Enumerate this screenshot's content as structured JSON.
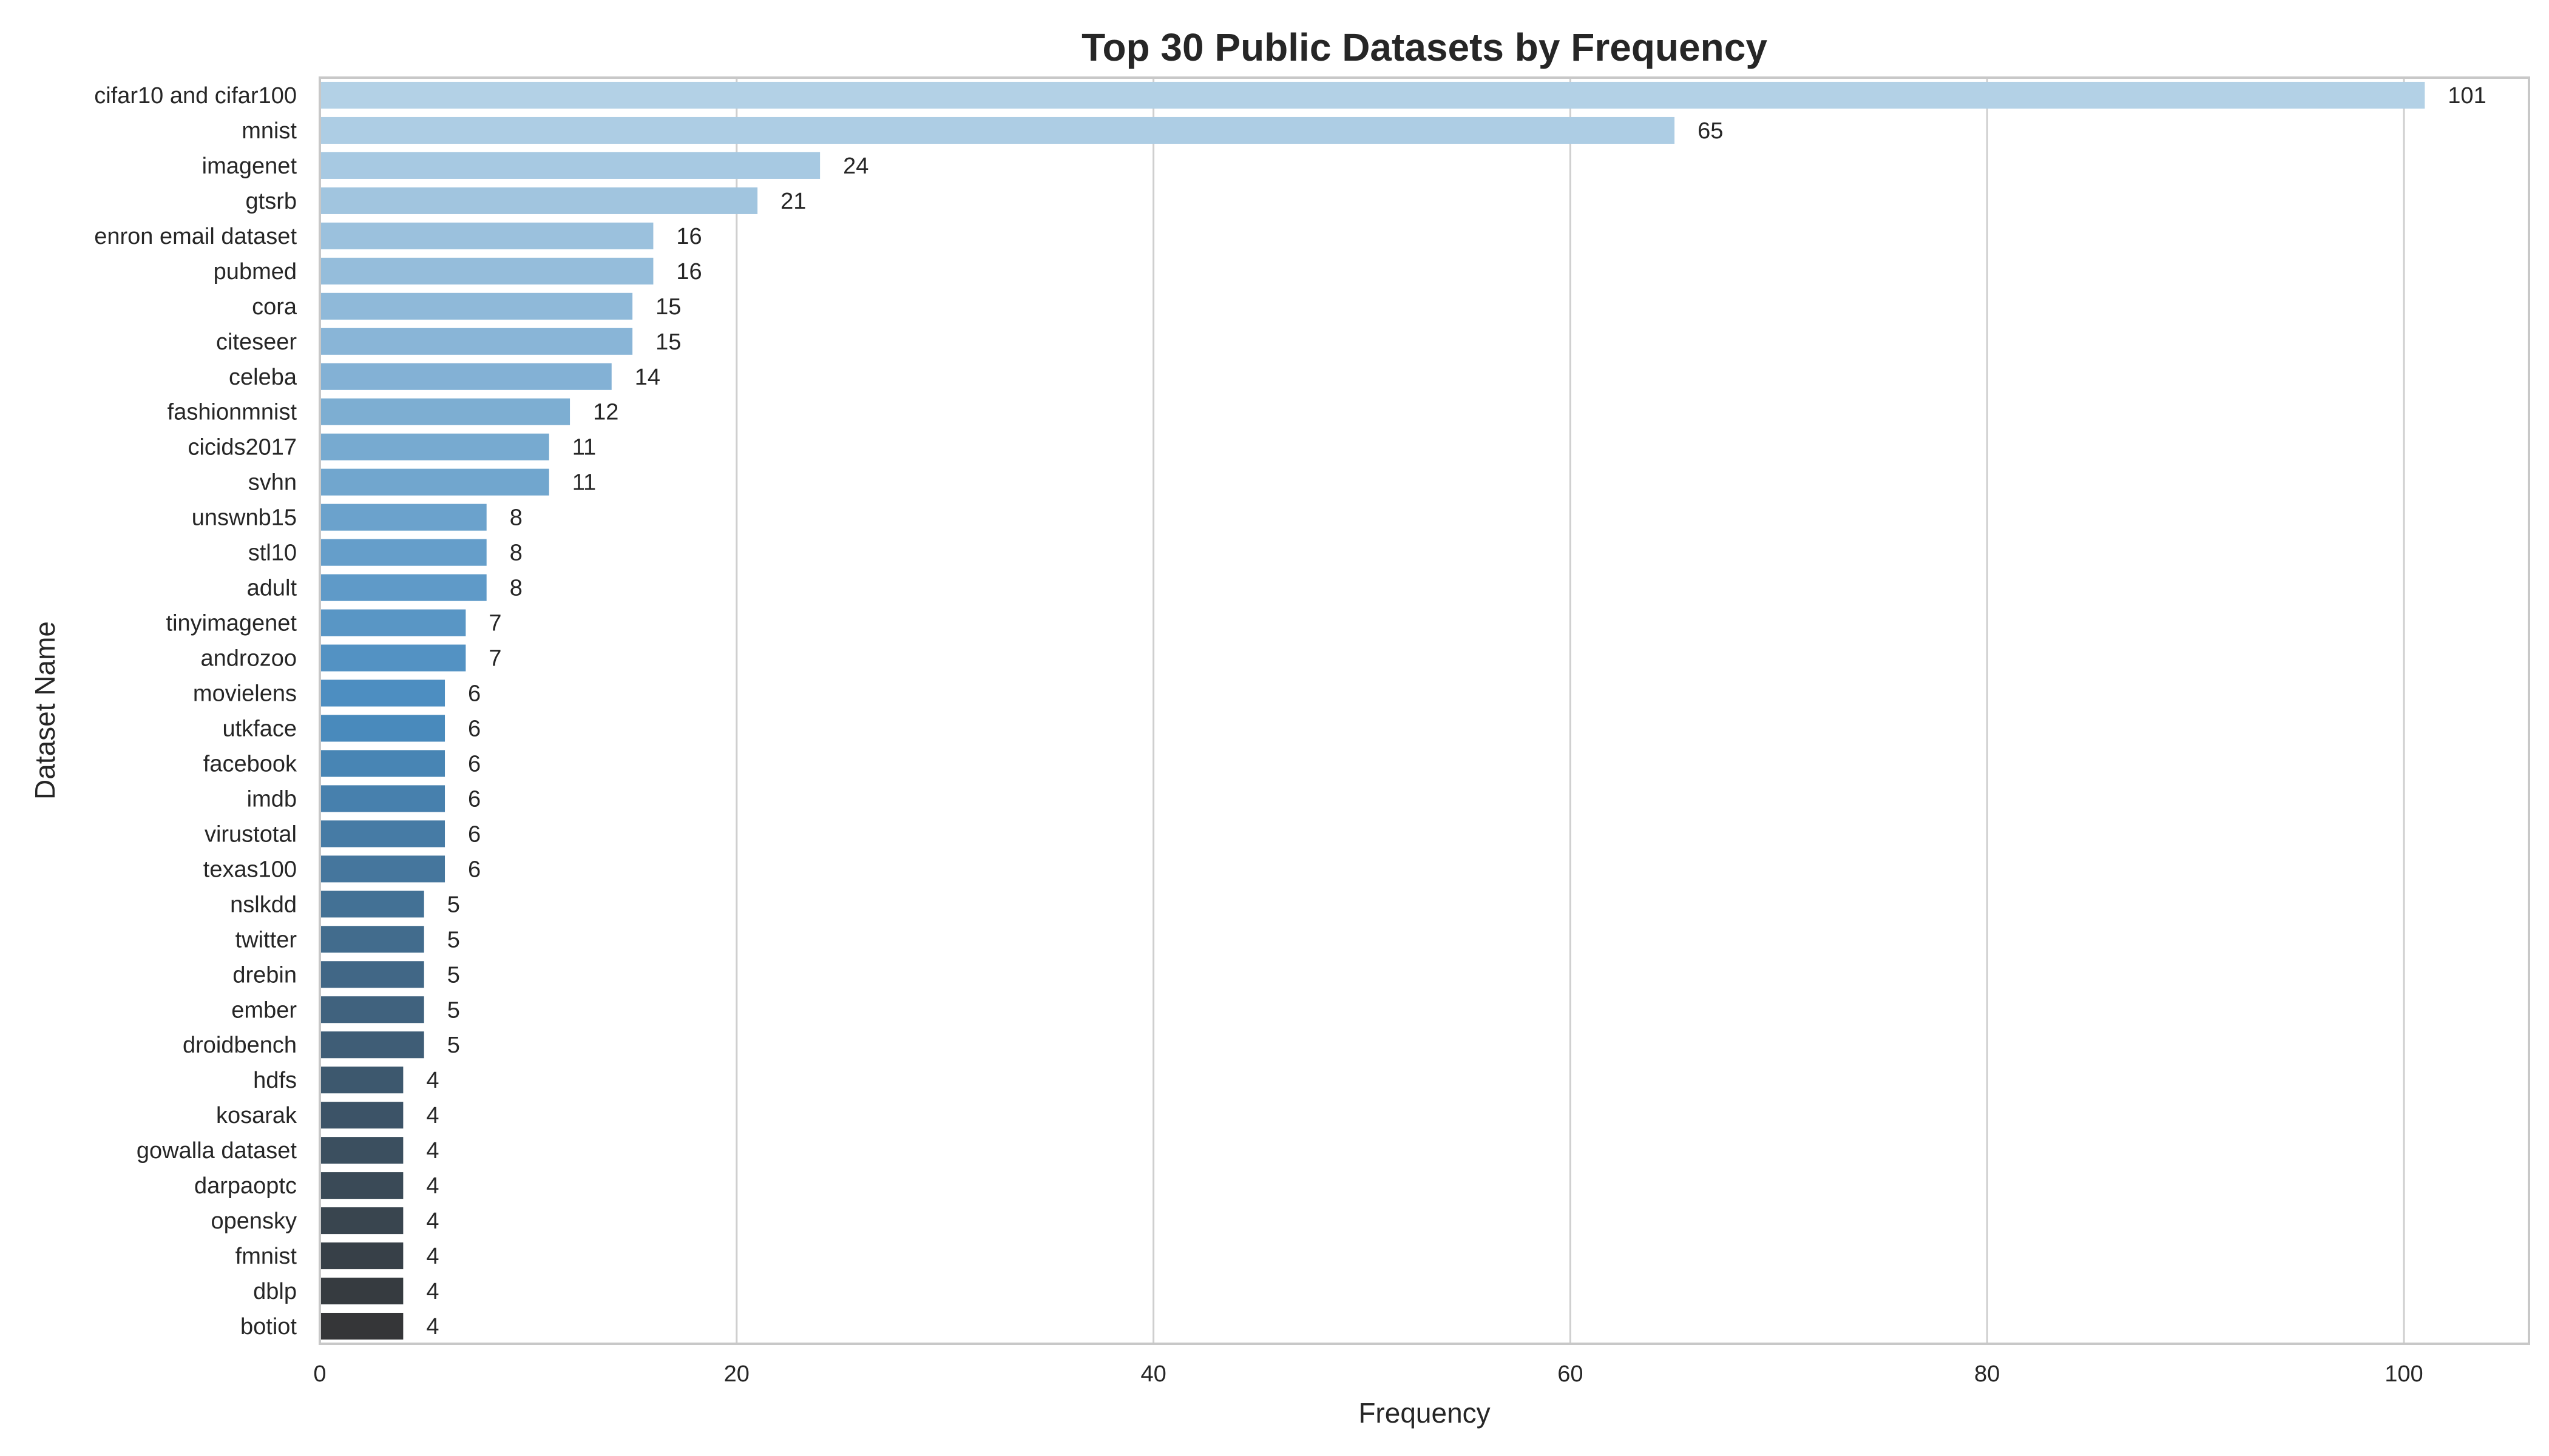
{
  "chart_data": {
    "type": "bar",
    "orientation": "horizontal",
    "title": "Top 30 Public Datasets by Frequency",
    "xlabel": "Frequency",
    "ylabel": "Dataset Name",
    "xlim": [
      0,
      106
    ],
    "xticks": [
      0,
      20,
      40,
      60,
      80,
      100
    ],
    "grid": "vertical",
    "categories": [
      "cifar10 and cifar100",
      "mnist",
      "imagenet",
      "gtsrb",
      "enron email dataset",
      "pubmed",
      "cora",
      "citeseer",
      "celeba",
      "fashionmnist",
      "cicids2017",
      "svhn",
      "unswnb15",
      "stl10",
      "adult",
      "tinyimagenet",
      "androzoo",
      "movielens",
      "utkface",
      "facebook",
      "imdb",
      "virustotal",
      "texas100",
      "nslkdd",
      "twitter",
      "drebin",
      "ember",
      "droidbench",
      "hdfs",
      "kosarak",
      "gowalla dataset",
      "darpaoptc",
      "opensky",
      "fmnist",
      "dblp",
      "botiot"
    ],
    "values": [
      101,
      65,
      24,
      21,
      16,
      16,
      15,
      15,
      14,
      12,
      11,
      11,
      8,
      8,
      8,
      7,
      7,
      6,
      6,
      6,
      6,
      6,
      6,
      5,
      5,
      5,
      5,
      5,
      4,
      4,
      4,
      4,
      4,
      4,
      4,
      4
    ],
    "colors": {
      "start": "#b3d1e6",
      "mid": "#4a8cc0",
      "end": "#353638"
    }
  }
}
